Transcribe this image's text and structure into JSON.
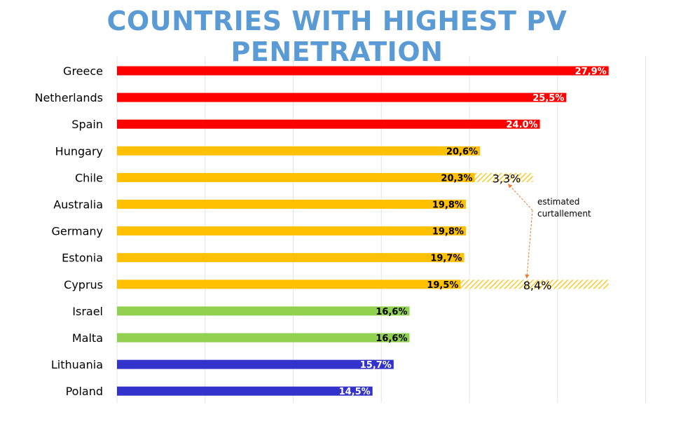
{
  "chart_data": {
    "type": "bar",
    "orientation": "horizontal",
    "title": "COUNTRIES WITH HIGHEST PV PENETRATION",
    "xlim": [
      0,
      30
    ],
    "grid": true,
    "categories": [
      "Greece",
      "Netherlands",
      "Spain",
      "Hungary",
      "Chile",
      "Australia",
      "Germany",
      "Estonia",
      "Cyprus",
      "Israel",
      "Malta",
      "Lithuania",
      "Poland"
    ],
    "values": [
      27.9,
      25.5,
      24.0,
      20.6,
      20.3,
      19.8,
      19.8,
      19.7,
      19.5,
      16.6,
      16.6,
      15.7,
      14.5
    ],
    "value_labels": [
      "27,9%",
      "25,5%",
      "24.0%",
      "20,6%",
      "20,3%",
      "19,8%",
      "19,8%",
      "19,7%",
      "19,5%",
      "16,6%",
      "16,6%",
      "15,7%",
      "14,5%"
    ],
    "bar_colors": [
      "#ff0000",
      "#ff0000",
      "#ff0000",
      "#ffc000",
      "#ffc000",
      "#ffc000",
      "#ffc000",
      "#ffc000",
      "#ffc000",
      "#92d050",
      "#92d050",
      "#3333cc",
      "#3333cc"
    ],
    "label_colors": [
      "#ffffff",
      "#ffffff",
      "#ffffff",
      "#000000",
      "#000000",
      "#000000",
      "#000000",
      "#000000",
      "#000000",
      "#000000",
      "#000000",
      "#ffffff",
      "#ffffff"
    ],
    "curtailment": [
      {
        "category": "Chile",
        "value": 3.3,
        "label": "3,3%"
      },
      {
        "category": "Cyprus",
        "value": 8.4,
        "label": "8,4%"
      }
    ],
    "annotation": {
      "lines": [
        "estimated",
        "curtallement"
      ]
    }
  }
}
